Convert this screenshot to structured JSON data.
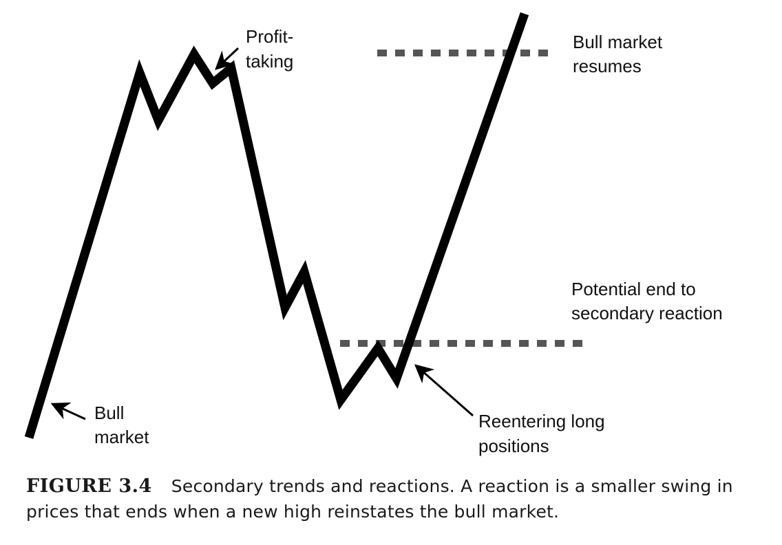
{
  "labels": {
    "profit_taking_1": "Profit-",
    "profit_taking_2": "taking",
    "bull_market_resumes_1": "Bull market",
    "bull_market_resumes_2": "resumes",
    "potential_end_1": "Potential end to",
    "potential_end_2": "secondary reaction",
    "reentering_1": "Reentering long",
    "reentering_2": "positions",
    "bull_market_1": "Bull",
    "bull_market_2": "market"
  },
  "caption": {
    "label": "FIGURE 3.4",
    "text": "Secondary trends and reactions. A reaction is a smaller swing in prices that ends when a new high reinstates the bull market."
  },
  "colors": {
    "price_line": "#000000",
    "level_line": "#555555",
    "text": "#111111"
  }
}
